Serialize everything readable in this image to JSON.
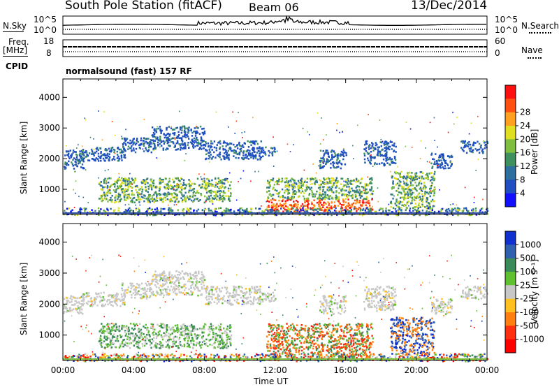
{
  "header": {
    "station": "South Pole Station (fitACF)",
    "beam": "Beam 06",
    "date": "13/Dec/2014"
  },
  "params": {
    "nsky_label": "N.Sky",
    "nsky_ticks": [
      "10^5",
      "10^0"
    ],
    "nsearch_label": "N.Search",
    "freq_label": "Freq.",
    "freq_unit": "[MHz]",
    "freq_ticks": [
      "18",
      "8"
    ],
    "nave_label": "Nave",
    "nave_ticks": [
      "60",
      "0"
    ],
    "cpid_label": "CPID",
    "cpid_value": "normalsound (fast) 157 RF"
  },
  "chart_data": [
    {
      "type": "heatmap",
      "panel": "power",
      "xlabel": "Time UT",
      "ylabel": "Slant Range [km]",
      "ylim": [
        180,
        4600
      ],
      "xlim": [
        0,
        24
      ],
      "yticks": [
        1000,
        2000,
        3000,
        4000
      ],
      "colorbar_label": "Power [dB]",
      "colorbar_ticks": [
        "4",
        "8",
        "12",
        "16",
        "20",
        "24",
        "28"
      ],
      "colorbar_colors": [
        "#1010ff",
        "#1f4fc0",
        "#2f6f9f",
        "#3f8f5f",
        "#7fbf3f",
        "#dfdf20",
        "#ffa020",
        "#ff5010",
        "#ff1010"
      ]
    },
    {
      "type": "heatmap",
      "panel": "velocity",
      "xlabel": "Time UT",
      "ylabel": "Slant Range [km]",
      "ylim": [
        180,
        4600
      ],
      "xlim": [
        0,
        24
      ],
      "yticks": [
        1000,
        2000,
        3000,
        4000
      ],
      "colorbar_label": "Velocity [m s⁻¹]",
      "colorbar_ticks": [
        "1000",
        "500",
        "100",
        "25",
        "-25",
        "-100",
        "-500",
        "-1000"
      ],
      "colorbar_colors": [
        "#1030d0",
        "#3060b0",
        "#3a8a5a",
        "#60c030",
        "#c8c8c8",
        "#ffc020",
        "#ff8010",
        "#ff3010",
        "#ff0000"
      ]
    }
  ],
  "time_axis": {
    "ticks": [
      "00:00",
      "04:00",
      "08:00",
      "12:00",
      "16:00",
      "20:00",
      "00:00"
    ],
    "label": "Time UT"
  }
}
